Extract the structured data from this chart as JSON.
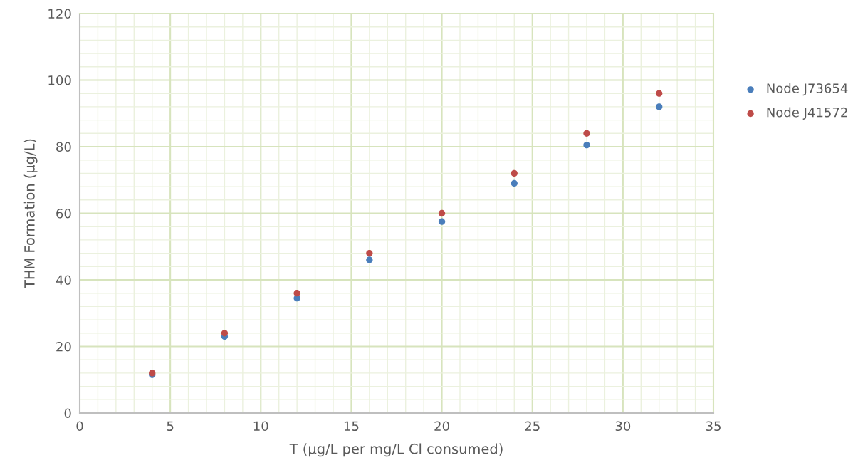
{
  "chart_data": {
    "type": "scatter",
    "xlabel": "T (µg/L per mg/L Cl consumed)",
    "ylabel": "THM Formation (µg/L)",
    "series": [
      {
        "name": "Node J73654",
        "color": "#4a7ebb",
        "x": [
          4,
          8,
          12,
          16,
          20,
          24,
          28,
          32
        ],
        "values": [
          11.5,
          23,
          34.5,
          46,
          57.5,
          69,
          80.5,
          92
        ]
      },
      {
        "name": "Node J41572",
        "color": "#be4b48",
        "x": [
          4,
          8,
          12,
          16,
          20,
          24,
          28,
          32
        ],
        "values": [
          12,
          24,
          36,
          48,
          60,
          72,
          84,
          96
        ]
      }
    ],
    "xlim": [
      0,
      35
    ],
    "xticks": [
      0,
      5,
      10,
      15,
      20,
      25,
      30,
      35
    ],
    "ylim": [
      0,
      120
    ],
    "yticks": [
      0,
      20,
      40,
      60,
      80,
      100,
      120
    ],
    "grid": true,
    "legend": "right",
    "marker": "circle"
  }
}
